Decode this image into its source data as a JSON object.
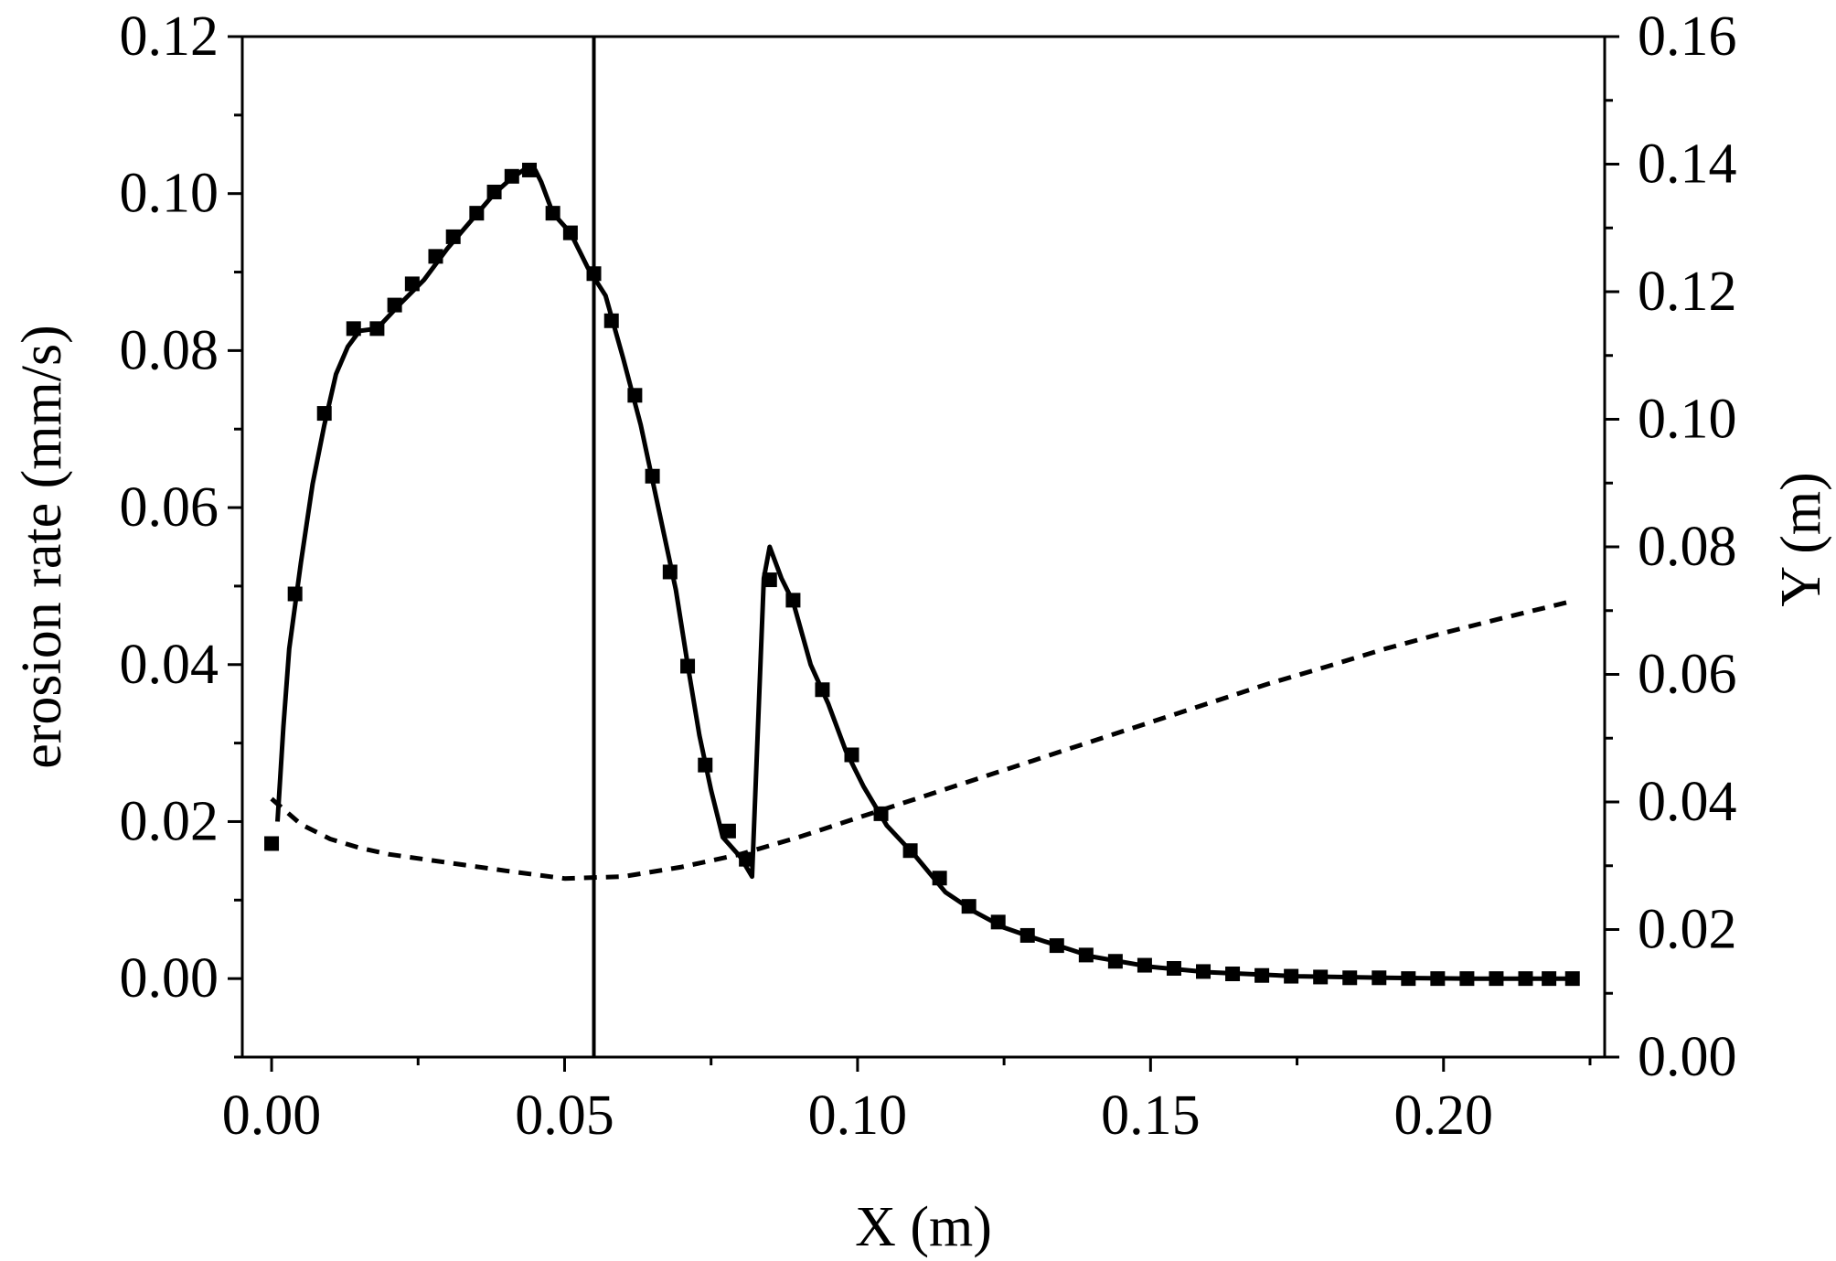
{
  "chart_data": {
    "type": "line",
    "title": "",
    "xlabel": "X (m)",
    "ylabel_left": "erosion rate (mm/s)",
    "ylabel_right": "Y (m)",
    "xlim": [
      -0.005,
      0.2275
    ],
    "ylim_left": [
      -0.01,
      0.12
    ],
    "ylim_right": [
      0,
      0.16
    ],
    "x_ticks": [
      "0.00",
      "0.05",
      "0.10",
      "0.15",
      "0.20"
    ],
    "y_left_ticks": [
      "0.00",
      "0.02",
      "0.04",
      "0.06",
      "0.08",
      "0.10",
      "0.12"
    ],
    "y_right_ticks": [
      "0.00",
      "0.02",
      "0.04",
      "0.06",
      "0.08",
      "0.10",
      "0.12",
      "0.14",
      "0.16"
    ],
    "vertical_line_x": 0.055,
    "grid": false,
    "legend": "none",
    "series": [
      {
        "axis": "left",
        "style": "solid line with square markers",
        "color": "#000000",
        "line": [
          [
            0.001,
            0.02
          ],
          [
            0.002,
            0.032
          ],
          [
            0.003,
            0.042
          ],
          [
            0.005,
            0.053
          ],
          [
            0.007,
            0.063
          ],
          [
            0.009,
            0.0705
          ],
          [
            0.011,
            0.077
          ],
          [
            0.013,
            0.0805
          ],
          [
            0.015,
            0.0825
          ],
          [
            0.018,
            0.0828
          ],
          [
            0.022,
            0.086
          ],
          [
            0.026,
            0.089
          ],
          [
            0.03,
            0.093
          ],
          [
            0.034,
            0.0965
          ],
          [
            0.038,
            0.1
          ],
          [
            0.041,
            0.102
          ],
          [
            0.043,
            0.103
          ],
          [
            0.045,
            0.103
          ],
          [
            0.046,
            0.1015
          ],
          [
            0.048,
            0.0975
          ],
          [
            0.051,
            0.095
          ],
          [
            0.054,
            0.0905
          ],
          [
            0.057,
            0.087
          ],
          [
            0.06,
            0.079
          ],
          [
            0.063,
            0.0705
          ],
          [
            0.066,
            0.06
          ],
          [
            0.069,
            0.0495
          ],
          [
            0.071,
            0.04
          ],
          [
            0.073,
            0.031
          ],
          [
            0.075,
            0.024
          ],
          [
            0.077,
            0.018
          ],
          [
            0.08,
            0.0155
          ],
          [
            0.082,
            0.013
          ],
          [
            0.084,
            0.051
          ],
          [
            0.085,
            0.055
          ],
          [
            0.087,
            0.051
          ],
          [
            0.089,
            0.048
          ],
          [
            0.092,
            0.04
          ],
          [
            0.095,
            0.035
          ],
          [
            0.098,
            0.029
          ],
          [
            0.101,
            0.0245
          ],
          [
            0.105,
            0.0195
          ],
          [
            0.11,
            0.0155
          ],
          [
            0.115,
            0.011
          ],
          [
            0.12,
            0.0085
          ],
          [
            0.125,
            0.0065
          ],
          [
            0.13,
            0.0052
          ],
          [
            0.135,
            0.004
          ],
          [
            0.14,
            0.0028
          ],
          [
            0.15,
            0.0015
          ],
          [
            0.16,
            0.0008
          ],
          [
            0.175,
            0.0003
          ],
          [
            0.19,
            0.0001
          ],
          [
            0.205,
            0.0
          ],
          [
            0.222,
            0.0
          ]
        ],
        "markers": [
          [
            0.0,
            0.0172
          ],
          [
            0.004,
            0.049
          ],
          [
            0.009,
            0.072
          ],
          [
            0.014,
            0.0828
          ],
          [
            0.018,
            0.0828
          ],
          [
            0.021,
            0.0858
          ],
          [
            0.024,
            0.0885
          ],
          [
            0.028,
            0.092
          ],
          [
            0.031,
            0.0945
          ],
          [
            0.035,
            0.0975
          ],
          [
            0.038,
            0.1002
          ],
          [
            0.041,
            0.1022
          ],
          [
            0.044,
            0.103
          ],
          [
            0.048,
            0.0975
          ],
          [
            0.051,
            0.095
          ],
          [
            0.055,
            0.0898
          ],
          [
            0.058,
            0.0838
          ],
          [
            0.062,
            0.0743
          ],
          [
            0.065,
            0.064
          ],
          [
            0.068,
            0.0518
          ],
          [
            0.071,
            0.0398
          ],
          [
            0.074,
            0.0272
          ],
          [
            0.078,
            0.0188
          ],
          [
            0.081,
            0.0152
          ],
          [
            0.085,
            0.0508
          ],
          [
            0.089,
            0.0482
          ],
          [
            0.094,
            0.0368
          ],
          [
            0.099,
            0.0285
          ],
          [
            0.104,
            0.021
          ],
          [
            0.109,
            0.0163
          ],
          [
            0.114,
            0.0128
          ],
          [
            0.119,
            0.0092
          ],
          [
            0.124,
            0.0072
          ],
          [
            0.129,
            0.0055
          ],
          [
            0.134,
            0.0042
          ],
          [
            0.139,
            0.003
          ],
          [
            0.144,
            0.0022
          ],
          [
            0.149,
            0.0017
          ],
          [
            0.154,
            0.0013
          ],
          [
            0.159,
            0.0009
          ],
          [
            0.164,
            0.0006
          ],
          [
            0.169,
            0.0004
          ],
          [
            0.174,
            0.0003
          ],
          [
            0.179,
            0.0002
          ],
          [
            0.184,
            0.0001
          ],
          [
            0.189,
            0.0001
          ],
          [
            0.194,
            0.0
          ],
          [
            0.199,
            0.0
          ],
          [
            0.204,
            0.0
          ],
          [
            0.209,
            0.0
          ],
          [
            0.214,
            0.0
          ],
          [
            0.218,
            0.0
          ],
          [
            0.222,
            0.0
          ]
        ]
      },
      {
        "axis": "right",
        "style": "dashed line",
        "color": "#000000",
        "line": [
          [
            0.0,
            0.0405
          ],
          [
            0.005,
            0.0365
          ],
          [
            0.01,
            0.0342
          ],
          [
            0.015,
            0.0328
          ],
          [
            0.02,
            0.0318
          ],
          [
            0.03,
            0.0305
          ],
          [
            0.04,
            0.0292
          ],
          [
            0.05,
            0.028
          ],
          [
            0.06,
            0.0283
          ],
          [
            0.07,
            0.0298
          ],
          [
            0.08,
            0.0318
          ],
          [
            0.09,
            0.0345
          ],
          [
            0.1,
            0.0375
          ],
          [
            0.11,
            0.0405
          ],
          [
            0.12,
            0.0435
          ],
          [
            0.13,
            0.0465
          ],
          [
            0.14,
            0.0495
          ],
          [
            0.15,
            0.0525
          ],
          [
            0.16,
            0.0555
          ],
          [
            0.17,
            0.0585
          ],
          [
            0.18,
            0.0612
          ],
          [
            0.19,
            0.064
          ],
          [
            0.2,
            0.0665
          ],
          [
            0.21,
            0.0688
          ],
          [
            0.222,
            0.0715
          ]
        ]
      }
    ]
  }
}
